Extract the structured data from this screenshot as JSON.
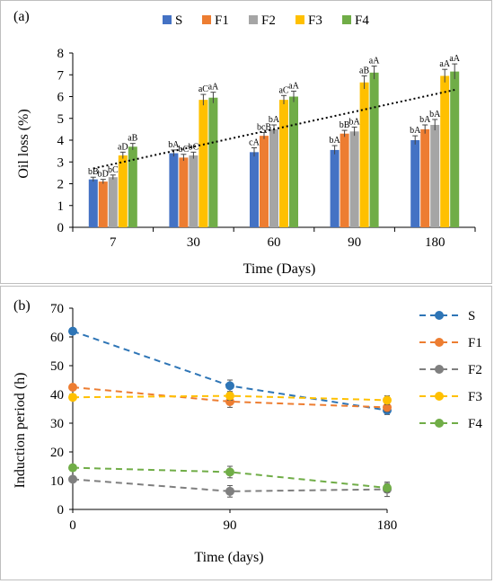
{
  "chart_data": [
    {
      "type": "bar",
      "panel_label": "(a)",
      "xlabel": "Time (Days)",
      "ylabel": "Oil loss (%)",
      "ylim": [
        0,
        8
      ],
      "yticks": [
        "0",
        "1",
        "2",
        "3",
        "4",
        "5",
        "6",
        "7",
        "8"
      ],
      "categories": [
        "7",
        "30",
        "60",
        "90",
        "180"
      ],
      "legend_position": "top",
      "grid": false,
      "trendline": "dotted linear trend across all bars",
      "series": [
        {
          "name": "S",
          "color": "#4472c4",
          "values": [
            2.2,
            3.4,
            3.45,
            3.55,
            4.0
          ],
          "errors": [
            0.1,
            0.15,
            0.2,
            0.2,
            0.2
          ],
          "labels": [
            "bB",
            "bA",
            "cA",
            "bA",
            "bA"
          ]
        },
        {
          "name": "F1",
          "color": "#ed7d31",
          "values": [
            2.1,
            3.2,
            4.2,
            4.3,
            4.5
          ],
          "errors": [
            0.1,
            0.15,
            0.15,
            0.15,
            0.2
          ],
          "labels": [
            "bD",
            "bC",
            "bcB",
            "bB",
            "bA"
          ]
        },
        {
          "name": "F2",
          "color": "#a5a5a5",
          "values": [
            2.3,
            3.3,
            4.5,
            4.4,
            4.7
          ],
          "errors": [
            0.1,
            0.15,
            0.2,
            0.2,
            0.25
          ],
          "labels": [
            "bC",
            "bC",
            "bA",
            "bA",
            "bA"
          ]
        },
        {
          "name": "F3",
          "color": "#ffc000",
          "values": [
            3.3,
            5.85,
            5.85,
            6.65,
            6.95
          ],
          "errors": [
            0.15,
            0.25,
            0.2,
            0.3,
            0.3
          ],
          "labels": [
            "aD",
            "aC",
            "aC",
            "aB",
            "aA"
          ]
        },
        {
          "name": "F4",
          "color": "#70ad47",
          "values": [
            3.7,
            5.95,
            6.0,
            7.1,
            7.15
          ],
          "errors": [
            0.15,
            0.25,
            0.25,
            0.3,
            0.35
          ],
          "labels": [
            "aB",
            "aA",
            "aA",
            "aA",
            "aA"
          ]
        }
      ]
    },
    {
      "type": "line",
      "panel_label": "(b)",
      "xlabel": "Time (days)",
      "ylabel": "Induction period  (h)",
      "ylim": [
        0,
        70
      ],
      "yticks": [
        "0",
        "10",
        "20",
        "30",
        "40",
        "50",
        "60",
        "70"
      ],
      "x": [
        0,
        90,
        180
      ],
      "xticks": [
        "0",
        "90",
        "180"
      ],
      "legend_position": "right",
      "grid": false,
      "line_style": "dashed",
      "series": [
        {
          "name": "S",
          "color": "#2e75b6",
          "values": [
            62.0,
            43.0,
            34.5
          ],
          "errors": [
            1.0,
            2.0,
            1.5
          ]
        },
        {
          "name": "F1",
          "color": "#ed7d31",
          "values": [
            42.5,
            37.5,
            35.5
          ],
          "errors": [
            1.0,
            2.0,
            1.5
          ]
        },
        {
          "name": "F2",
          "color": "#7f7f7f",
          "values": [
            10.5,
            6.3,
            7.0
          ],
          "errors": [
            1.0,
            2.0,
            2.5
          ]
        },
        {
          "name": "F3",
          "color": "#ffc000",
          "values": [
            39.0,
            39.5,
            38.0
          ],
          "errors": [
            1.0,
            1.5,
            1.5
          ]
        },
        {
          "name": "F4",
          "color": "#70ad47",
          "values": [
            14.5,
            13.0,
            7.5
          ],
          "errors": [
            1.0,
            2.0,
            1.5
          ]
        }
      ]
    }
  ]
}
